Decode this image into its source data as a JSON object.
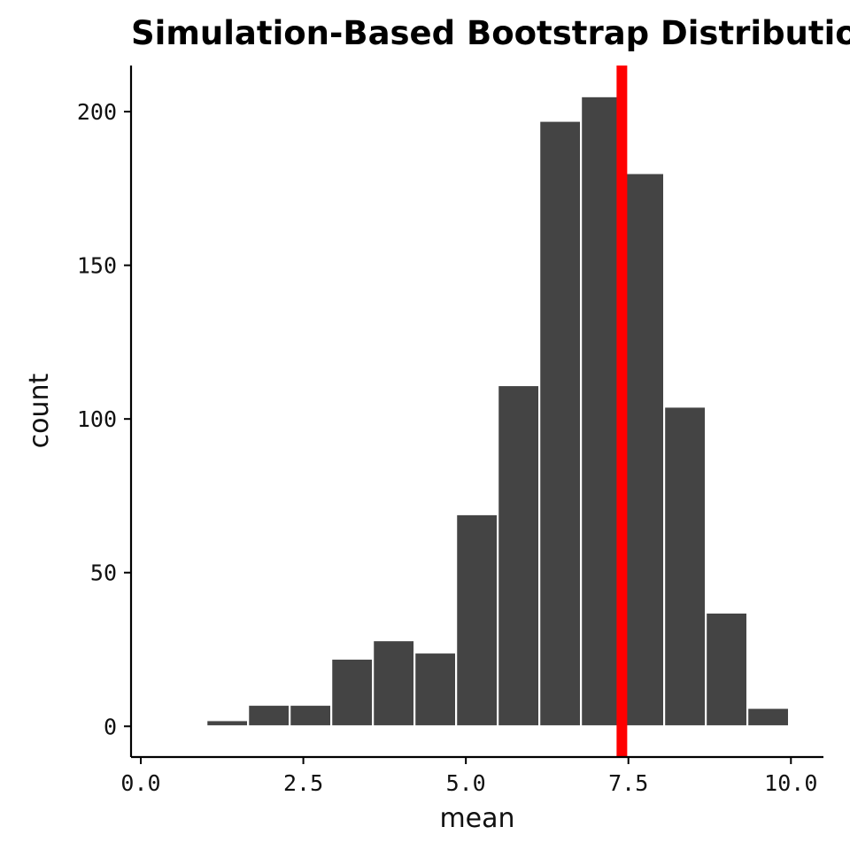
{
  "chart_data": {
    "type": "bar",
    "title": "Simulation-Based Bootstrap Distribution",
    "xlabel": "mean",
    "ylabel": "count",
    "xlim": [
      -0.15,
      10.5
    ],
    "ylim": [
      -10,
      215
    ],
    "x_ticks": [
      0.0,
      2.5,
      5.0,
      7.5,
      10.0
    ],
    "x_tick_labels": [
      "0.0",
      "2.5",
      "5.0",
      "7.5",
      "10.0"
    ],
    "y_ticks": [
      0,
      50,
      100,
      150,
      200
    ],
    "y_tick_labels": [
      "0",
      "50",
      "100",
      "150",
      "200"
    ],
    "bin_width": 0.64,
    "bins": [
      {
        "center": 0.69,
        "count": 0.5
      },
      {
        "center": 1.33,
        "count": 2
      },
      {
        "center": 1.97,
        "count": 7
      },
      {
        "center": 2.61,
        "count": 7
      },
      {
        "center": 3.25,
        "count": 22
      },
      {
        "center": 3.89,
        "count": 28
      },
      {
        "center": 4.53,
        "count": 24
      },
      {
        "center": 5.17,
        "count": 69
      },
      {
        "center": 5.81,
        "count": 111
      },
      {
        "center": 6.45,
        "count": 197
      },
      {
        "center": 7.09,
        "count": 205
      },
      {
        "center": 7.73,
        "count": 180
      },
      {
        "center": 8.37,
        "count": 104
      },
      {
        "center": 9.01,
        "count": 37
      },
      {
        "center": 9.65,
        "count": 6
      }
    ],
    "reference_line": {
      "x": 7.4,
      "color": "#ff0000"
    },
    "bar_color": "#444444",
    "bar_outline": "#ffffff",
    "grid": false,
    "legend": "none"
  }
}
